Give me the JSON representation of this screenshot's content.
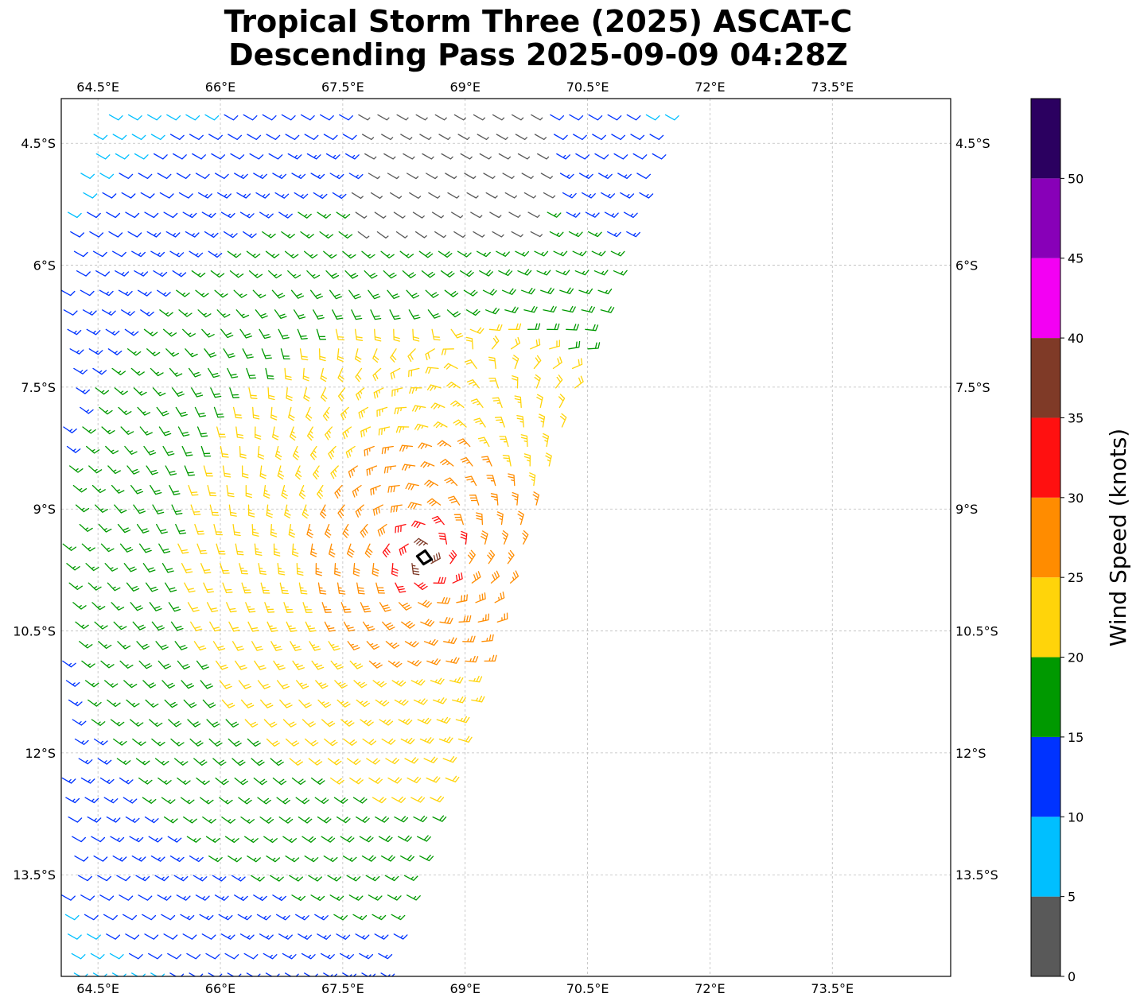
{
  "title_line1": "Tropical Storm Three (2025) ASCAT-C",
  "title_line2": "Descending Pass 2025-09-09 04:28Z",
  "map": {
    "lon_range": [
      64.05,
      74.95
    ],
    "lat_range": [
      -14.75,
      -3.95
    ],
    "lon_ticks": [
      {
        "value": 64.5,
        "label": "64.5°E"
      },
      {
        "value": 66.0,
        "label": "66°E"
      },
      {
        "value": 67.5,
        "label": "67.5°E"
      },
      {
        "value": 69.0,
        "label": "69°E"
      },
      {
        "value": 70.5,
        "label": "70.5°E"
      },
      {
        "value": 72.0,
        "label": "72°E"
      },
      {
        "value": 73.5,
        "label": "73.5°E"
      }
    ],
    "lat_ticks": [
      {
        "value": -4.5,
        "label": "4.5°S"
      },
      {
        "value": -6.0,
        "label": "6°S"
      },
      {
        "value": -7.5,
        "label": "7.5°S"
      },
      {
        "value": -9.0,
        "label": "9°S"
      },
      {
        "value": -10.5,
        "label": "10.5°S"
      },
      {
        "value": -12.0,
        "label": "12°S"
      },
      {
        "value": -13.5,
        "label": "13.5°S"
      }
    ],
    "grid": true,
    "storm_center": {
      "lon": 68.5,
      "lat": -9.6
    }
  },
  "colorbar": {
    "label": "Wind Speed (knots)",
    "bins": [
      {
        "from": 0,
        "to": 5,
        "color": "#595959"
      },
      {
        "from": 5,
        "to": 10,
        "color": "#00bfff"
      },
      {
        "from": 10,
        "to": 15,
        "color": "#0033ff"
      },
      {
        "from": 15,
        "to": 20,
        "color": "#009900"
      },
      {
        "from": 20,
        "to": 25,
        "color": "#ffd40a"
      },
      {
        "from": 25,
        "to": 30,
        "color": "#ff8c00"
      },
      {
        "from": 30,
        "to": 35,
        "color": "#ff1010"
      },
      {
        "from": 35,
        "to": 40,
        "color": "#7f3a27"
      },
      {
        "from": 40,
        "to": 45,
        "color": "#f300f3"
      },
      {
        "from": 45,
        "to": 50,
        "color": "#8800b8"
      },
      {
        "from": 50,
        "to": 55,
        "color": "#2b0060"
      }
    ],
    "ticks": [
      "0",
      "5",
      "10",
      "15",
      "20",
      "25",
      "30",
      "35",
      "40",
      "45",
      "50"
    ]
  }
}
